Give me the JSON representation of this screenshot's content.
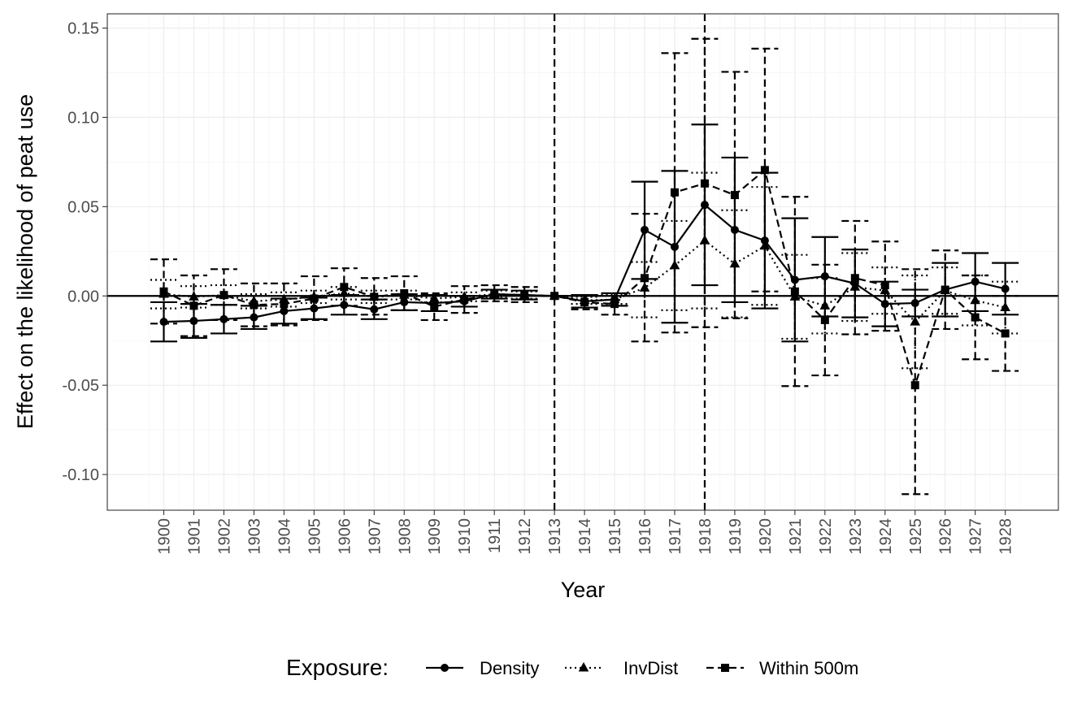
{
  "chart_data": {
    "type": "line",
    "title": "",
    "xlabel": "Year",
    "ylabel": "Effect on the likelihood of peat use",
    "x": [
      1900,
      1901,
      1902,
      1903,
      1904,
      1905,
      1906,
      1907,
      1908,
      1909,
      1910,
      1911,
      1912,
      1913,
      1914,
      1915,
      1916,
      1917,
      1918,
      1919,
      1920,
      1921,
      1922,
      1923,
      1924,
      1925,
      1926,
      1927,
      1928
    ],
    "x_tick_labels": [
      "1900",
      "1901",
      "1902",
      "1903",
      "1904",
      "1905",
      "1906",
      "1907",
      "1908",
      "1909",
      "1910",
      "1911",
      "1912",
      "1913",
      "1914",
      "1915",
      "1916",
      "1917",
      "1918",
      "1919",
      "1920",
      "1921",
      "1922",
      "1923",
      "1924",
      "1925",
      "1926",
      "1927",
      "1928"
    ],
    "ylim": [
      -0.12,
      0.158
    ],
    "y_ticks": [
      -0.1,
      -0.05,
      0.0,
      0.05,
      0.1,
      0.15
    ],
    "y_tick_labels": [
      "-0.10",
      "-0.05",
      "0.00",
      "0.05",
      "0.10",
      "0.15"
    ],
    "reference_lines": {
      "horizontal_y": 0.0,
      "vertical_x": [
        1913,
        1918
      ]
    },
    "grid": true,
    "legend_position": "bottom",
    "legend_title": "Exposure:",
    "series": [
      {
        "name": "Density",
        "marker": "circle",
        "line_style": "solid",
        "values": [
          -0.0145,
          -0.014,
          -0.013,
          -0.012,
          -0.0085,
          -0.007,
          -0.005,
          -0.0075,
          -0.0035,
          -0.004,
          -0.003,
          0.001,
          0.0005,
          0.0,
          -0.003,
          -0.002,
          0.037,
          0.0275,
          0.051,
          0.037,
          0.031,
          0.009,
          0.011,
          0.007,
          -0.0045,
          -0.004,
          0.0035,
          0.008,
          0.004
        ],
        "ci_lower": [
          -0.0255,
          -0.0235,
          -0.021,
          -0.0185,
          -0.0155,
          -0.013,
          -0.0105,
          -0.013,
          -0.008,
          -0.0085,
          -0.006,
          -0.0015,
          -0.002,
          0.0,
          -0.0065,
          -0.0055,
          0.0095,
          -0.015,
          0.006,
          -0.0035,
          -0.007,
          -0.0255,
          -0.0115,
          -0.012,
          -0.017,
          -0.0115,
          -0.0115,
          -0.0085,
          -0.0105
        ],
        "ci_upper": [
          -0.0035,
          -0.0045,
          -0.005,
          -0.0055,
          -0.0015,
          -0.001,
          0.0005,
          -0.002,
          0.001,
          0.0005,
          0.0,
          0.0035,
          0.003,
          0.0,
          0.0005,
          0.0015,
          0.064,
          0.07,
          0.096,
          0.0775,
          0.069,
          0.0435,
          0.033,
          0.026,
          0.008,
          0.0035,
          0.0185,
          0.024,
          0.0185
        ]
      },
      {
        "name": "InvDist",
        "marker": "triangle",
        "line_style": "dotted",
        "values": [
          0.001,
          -0.0005,
          0.0005,
          -0.003,
          -0.002,
          -0.0005,
          0.0015,
          -0.0005,
          0.0005,
          -0.0015,
          -0.0005,
          0.001,
          0.0005,
          0.0,
          -0.0025,
          -0.002,
          0.0045,
          0.017,
          0.031,
          0.018,
          0.028,
          -0.0005,
          -0.0055,
          0.005,
          0.003,
          -0.0145,
          0.003,
          -0.0025,
          -0.0065
        ],
        "ci_lower": [
          -0.007,
          -0.0065,
          -0.005,
          -0.007,
          -0.006,
          -0.004,
          -0.002,
          -0.004,
          -0.002,
          -0.0035,
          -0.003,
          -0.001,
          -0.0015,
          0.0,
          -0.0045,
          -0.0045,
          -0.012,
          -0.008,
          -0.007,
          -0.012,
          -0.005,
          -0.024,
          -0.021,
          -0.014,
          -0.01,
          -0.0405,
          -0.01,
          -0.0165,
          -0.021
        ],
        "ci_upper": [
          0.009,
          0.0055,
          0.006,
          0.001,
          0.002,
          0.003,
          0.005,
          0.003,
          0.003,
          0.0005,
          0.002,
          0.003,
          0.0025,
          0.0,
          -0.0005,
          0.0005,
          0.019,
          0.042,
          0.069,
          0.048,
          0.061,
          0.023,
          0.01,
          0.024,
          0.016,
          0.0115,
          0.016,
          0.0115,
          0.008
        ]
      },
      {
        "name": "Within 500m",
        "marker": "square",
        "line_style": "dashed",
        "values": [
          0.0025,
          -0.0055,
          0.0005,
          -0.005,
          -0.0045,
          -0.0015,
          0.005,
          -0.0005,
          0.0015,
          -0.006,
          -0.002,
          0.001,
          0.0005,
          0.0,
          -0.0035,
          -0.0045,
          0.01,
          0.058,
          0.063,
          0.0565,
          0.0705,
          0.0025,
          -0.0135,
          0.01,
          0.006,
          -0.05,
          0.0035,
          -0.012,
          -0.021
        ],
        "ci_lower": [
          -0.0155,
          -0.0225,
          -0.0135,
          -0.017,
          -0.0165,
          -0.0135,
          -0.0055,
          -0.0105,
          -0.008,
          -0.0135,
          -0.0095,
          -0.003,
          -0.0035,
          0.0,
          -0.0075,
          -0.0105,
          -0.0255,
          -0.0205,
          -0.0175,
          -0.0125,
          0.0025,
          -0.0505,
          -0.0445,
          -0.0215,
          -0.0195,
          -0.111,
          -0.0185,
          -0.0355,
          -0.042
        ],
        "ci_upper": [
          0.0205,
          0.0115,
          0.015,
          0.007,
          0.007,
          0.011,
          0.0155,
          0.01,
          0.011,
          0.0015,
          0.0055,
          0.006,
          0.005,
          0.0,
          0.0005,
          0.0015,
          0.046,
          0.136,
          0.144,
          0.1255,
          0.1385,
          0.0555,
          0.0175,
          0.042,
          0.0305,
          0.015,
          0.0255,
          0.0115,
          0.0
        ]
      }
    ]
  }
}
